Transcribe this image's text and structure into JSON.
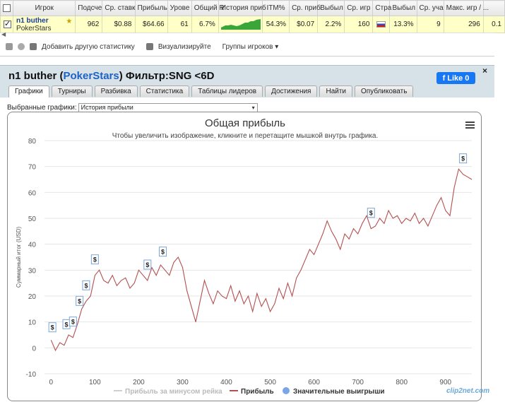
{
  "table": {
    "headers": [
      "Игрок",
      "Подсче",
      "Ср. ставк",
      "Прибыль",
      "Урове",
      "Общий R",
      "История приб",
      "ITM%",
      "Ср. приб",
      "Выбыл",
      "Ср. игр",
      "Стра",
      "Выбыл",
      "Ср. уча",
      "Макс. игр / ...",
      ""
    ],
    "row": {
      "player_name": "n1 buther",
      "room": "PokerStars",
      "cells": [
        "962",
        "$0.88",
        "$64.66",
        "61",
        "6.7%",
        "",
        "54.3%",
        "$0.07",
        "2.2%",
        "160",
        "",
        "13.3%",
        "9",
        "296",
        "0.1"
      ]
    }
  },
  "toolbar": {
    "add_stats": "Добавить другую статистику",
    "visualize": "Визуализируйте",
    "player_groups": "Группы игроков"
  },
  "panel": {
    "title_player": "n1 buther",
    "title_room": "PokerStars",
    "title_filter": "Фильтр:SNG <6D",
    "open_paren": "(",
    "close_paren": ")",
    "like_label": "Like 0",
    "close_symbol": "×"
  },
  "tabs": [
    "Графики",
    "Турниры",
    "Разбивка",
    "Статистика",
    "Таблицы лидеров",
    "Достижения",
    "Найти",
    "Опубликовать"
  ],
  "graph_select": {
    "label": "Выбранные графики:",
    "value": "История прибыли"
  },
  "chart_data": {
    "type": "line",
    "title": "Общая прибыль",
    "subtitle": "Чтобы увеличить изображение, кликните и перетащите мышкой внутрь графика.",
    "xlabel": "",
    "ylabel": "Суммарный итог (USD)",
    "xlim": [
      -15,
      960
    ],
    "ylim": [
      -10,
      80
    ],
    "x_ticks": [
      0,
      100,
      200,
      300,
      400,
      500,
      600,
      700,
      800,
      900
    ],
    "y_ticks": [
      -10,
      0,
      10,
      20,
      30,
      40,
      50,
      60,
      70,
      80
    ],
    "grid": true,
    "legend_position": "bottom",
    "legend": [
      "Прибыль за минусом рейка",
      "Прибыль",
      "Значительные выигрыши"
    ],
    "series": [
      {
        "name": "Прибыль",
        "color": "#b35050",
        "x": [
          0,
          10,
          20,
          30,
          40,
          50,
          60,
          70,
          80,
          90,
          100,
          110,
          120,
          130,
          140,
          150,
          160,
          170,
          180,
          190,
          200,
          210,
          220,
          230,
          240,
          250,
          260,
          270,
          280,
          290,
          300,
          310,
          320,
          330,
          340,
          350,
          360,
          370,
          380,
          390,
          400,
          410,
          420,
          430,
          440,
          450,
          460,
          470,
          480,
          490,
          500,
          510,
          520,
          530,
          540,
          550,
          560,
          570,
          580,
          590,
          600,
          610,
          620,
          630,
          640,
          650,
          660,
          670,
          680,
          690,
          700,
          710,
          720,
          730,
          740,
          750,
          760,
          770,
          780,
          790,
          800,
          810,
          820,
          830,
          840,
          850,
          860,
          870,
          880,
          890,
          900,
          910,
          920,
          930,
          940,
          950,
          960
        ],
        "y": [
          3,
          -1,
          2,
          1,
          5,
          4,
          9,
          15,
          18,
          20,
          28,
          30,
          26,
          25,
          28,
          24,
          26,
          27,
          23,
          25,
          30,
          28,
          26,
          31,
          28,
          32,
          30,
          28,
          33,
          35,
          31,
          22,
          16,
          10,
          18,
          26,
          21,
          17,
          22,
          20,
          19,
          24,
          18,
          22,
          17,
          20,
          14,
          21,
          16,
          19,
          14,
          17,
          23,
          19,
          25,
          20,
          27,
          30,
          34,
          38,
          36,
          40,
          44,
          49,
          45,
          42,
          38,
          44,
          42,
          46,
          44,
          48,
          51,
          46,
          47,
          50,
          48,
          53,
          50,
          51,
          48,
          50,
          49,
          52,
          48,
          50,
          47,
          51,
          55,
          58,
          53,
          51,
          62,
          69,
          67,
          66,
          65
        ]
      }
    ],
    "big_wins_x": [
      3,
      35,
      50,
      65,
      80,
      100,
      220,
      255,
      730,
      940
    ],
    "big_win_marker": "$"
  },
  "watermark": "clip2net.com"
}
